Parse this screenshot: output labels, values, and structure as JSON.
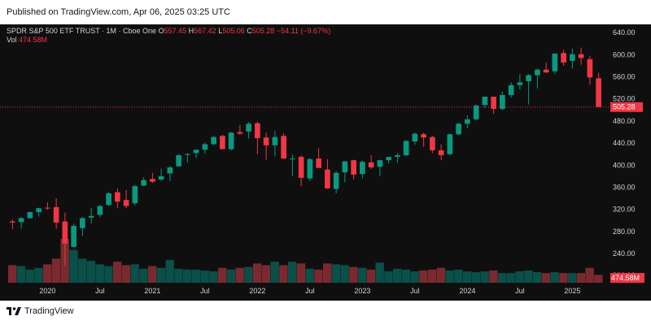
{
  "header": {
    "published": "Published on TradingView.com, Apr 06, 2025 03:25 UTC"
  },
  "legend": {
    "symbol": "SPDR S&P 500 ETF TRUST · 1M · Cboe One",
    "o_label": "O",
    "o_value": "557.45",
    "h_label": "H",
    "h_value": "567.42",
    "l_label": "L",
    "l_value": "505.06",
    "c_label": "C",
    "c_value": "505.28",
    "change": "−54.11 (−9.67%)",
    "vol_label": "Vol",
    "vol_value": "474.58M"
  },
  "footer": {
    "brand": "TradingView",
    "brand_icon": "tradingview-logo-icon"
  },
  "colors": {
    "background": "#0f0f0f",
    "up": "#089981",
    "down": "#f23645",
    "vol_up": "#0b4f49",
    "vol_down": "#7a2a2f",
    "axis_text": "#d1d4dc",
    "price_line": "#f23645"
  },
  "chart_data": {
    "type": "candlestick",
    "interval": "1M",
    "x_tick_labels": [
      "2020",
      "Jul",
      "2021",
      "Jul",
      "2022",
      "Jul",
      "2023",
      "Jul",
      "2024",
      "Jul",
      "2025"
    ],
    "y_ticks": [
      200,
      240,
      280,
      320,
      360,
      400,
      440,
      480,
      520,
      560,
      600,
      640
    ],
    "y_tick_labels": [
      "200.00",
      "240.00",
      "280.00",
      "320.00",
      "360.00",
      "400.00",
      "440.00",
      "480.00",
      "520.00",
      "560.00",
      "600.00",
      "640.00"
    ],
    "ylim": [
      190,
      655
    ],
    "last_price": 505.28,
    "last_price_label": "505.28",
    "last_volume_label": "474.58M",
    "grid": false,
    "candles": [
      {
        "date": "2019-09",
        "o": 298,
        "h": 302,
        "l": 284,
        "c": 296,
        "v": 0.4
      },
      {
        "date": "2019-10",
        "o": 297,
        "h": 306,
        "l": 285,
        "c": 304,
        "v": 0.38
      },
      {
        "date": "2019-11",
        "o": 304,
        "h": 316,
        "l": 303,
        "c": 315,
        "v": 0.3
      },
      {
        "date": "2019-12",
        "o": 315,
        "h": 323,
        "l": 307,
        "c": 322,
        "v": 0.34
      },
      {
        "date": "2020-01",
        "o": 323,
        "h": 333,
        "l": 319,
        "c": 322,
        "v": 0.42
      },
      {
        "date": "2020-02",
        "o": 324,
        "h": 340,
        "l": 285,
        "c": 296,
        "v": 0.55
      },
      {
        "date": "2020-03",
        "o": 298,
        "h": 314,
        "l": 218,
        "c": 258,
        "v": 1.0
      },
      {
        "date": "2020-04",
        "o": 252,
        "h": 294,
        "l": 250,
        "c": 290,
        "v": 0.75
      },
      {
        "date": "2020-05",
        "o": 286,
        "h": 306,
        "l": 272,
        "c": 304,
        "v": 0.55
      },
      {
        "date": "2020-06",
        "o": 305,
        "h": 323,
        "l": 294,
        "c": 308,
        "v": 0.5
      },
      {
        "date": "2020-07",
        "o": 310,
        "h": 328,
        "l": 306,
        "c": 326,
        "v": 0.42
      },
      {
        "date": "2020-08",
        "o": 328,
        "h": 351,
        "l": 326,
        "c": 349,
        "v": 0.38
      },
      {
        "date": "2020-09",
        "o": 351,
        "h": 358,
        "l": 322,
        "c": 334,
        "v": 0.48
      },
      {
        "date": "2020-10",
        "o": 337,
        "h": 355,
        "l": 322,
        "c": 326,
        "v": 0.4
      },
      {
        "date": "2020-11",
        "o": 331,
        "h": 364,
        "l": 327,
        "c": 362,
        "v": 0.42
      },
      {
        "date": "2020-12",
        "o": 363,
        "h": 378,
        "l": 362,
        "c": 373,
        "v": 0.32
      },
      {
        "date": "2021-01",
        "o": 375,
        "h": 386,
        "l": 368,
        "c": 370,
        "v": 0.38
      },
      {
        "date": "2021-02",
        "o": 374,
        "h": 394,
        "l": 372,
        "c": 380,
        "v": 0.34
      },
      {
        "date": "2021-03",
        "o": 385,
        "h": 398,
        "l": 371,
        "c": 396,
        "v": 0.52
      },
      {
        "date": "2021-04",
        "o": 398,
        "h": 420,
        "l": 397,
        "c": 418,
        "v": 0.32
      },
      {
        "date": "2021-05",
        "o": 419,
        "h": 422,
        "l": 405,
        "c": 420,
        "v": 0.3
      },
      {
        "date": "2021-06",
        "o": 422,
        "h": 428,
        "l": 413,
        "c": 428,
        "v": 0.3
      },
      {
        "date": "2021-07",
        "o": 428,
        "h": 441,
        "l": 421,
        "c": 438,
        "v": 0.28
      },
      {
        "date": "2021-08",
        "o": 438,
        "h": 453,
        "l": 436,
        "c": 451,
        "v": 0.26
      },
      {
        "date": "2021-09",
        "o": 453,
        "h": 455,
        "l": 429,
        "c": 429,
        "v": 0.34
      },
      {
        "date": "2021-10",
        "o": 429,
        "h": 460,
        "l": 427,
        "c": 459,
        "v": 0.3
      },
      {
        "date": "2021-11",
        "o": 460,
        "h": 473,
        "l": 455,
        "c": 457,
        "v": 0.34
      },
      {
        "date": "2021-12",
        "o": 461,
        "h": 478,
        "l": 448,
        "c": 475,
        "v": 0.36
      },
      {
        "date": "2022-01",
        "o": 476,
        "h": 479,
        "l": 420,
        "c": 449,
        "v": 0.44
      },
      {
        "date": "2022-02",
        "o": 450,
        "h": 459,
        "l": 410,
        "c": 436,
        "v": 0.4
      },
      {
        "date": "2022-03",
        "o": 436,
        "h": 462,
        "l": 416,
        "c": 451,
        "v": 0.48
      },
      {
        "date": "2022-04",
        "o": 453,
        "h": 458,
        "l": 412,
        "c": 412,
        "v": 0.4
      },
      {
        "date": "2022-05",
        "o": 412,
        "h": 419,
        "l": 380,
        "c": 412,
        "v": 0.48
      },
      {
        "date": "2022-06",
        "o": 415,
        "h": 418,
        "l": 362,
        "c": 377,
        "v": 0.44
      },
      {
        "date": "2022-07",
        "o": 376,
        "h": 413,
        "l": 371,
        "c": 411,
        "v": 0.32
      },
      {
        "date": "2022-08",
        "o": 412,
        "h": 431,
        "l": 395,
        "c": 395,
        "v": 0.3
      },
      {
        "date": "2022-09",
        "o": 392,
        "h": 411,
        "l": 357,
        "c": 358,
        "v": 0.44
      },
      {
        "date": "2022-10",
        "o": 357,
        "h": 389,
        "l": 349,
        "c": 386,
        "v": 0.42
      },
      {
        "date": "2022-11",
        "o": 387,
        "h": 407,
        "l": 369,
        "c": 407,
        "v": 0.4
      },
      {
        "date": "2022-12",
        "o": 409,
        "h": 410,
        "l": 374,
        "c": 383,
        "v": 0.36
      },
      {
        "date": "2023-01",
        "o": 384,
        "h": 408,
        "l": 376,
        "c": 406,
        "v": 0.34
      },
      {
        "date": "2023-02",
        "o": 405,
        "h": 418,
        "l": 393,
        "c": 396,
        "v": 0.3
      },
      {
        "date": "2023-03",
        "o": 397,
        "h": 410,
        "l": 380,
        "c": 409,
        "v": 0.46
      },
      {
        "date": "2023-04",
        "o": 409,
        "h": 415,
        "l": 403,
        "c": 415,
        "v": 0.26
      },
      {
        "date": "2023-05",
        "o": 415,
        "h": 422,
        "l": 404,
        "c": 418,
        "v": 0.32
      },
      {
        "date": "2023-06",
        "o": 418,
        "h": 445,
        "l": 416,
        "c": 444,
        "v": 0.3
      },
      {
        "date": "2023-07",
        "o": 443,
        "h": 459,
        "l": 437,
        "c": 457,
        "v": 0.26
      },
      {
        "date": "2023-08",
        "o": 456,
        "h": 459,
        "l": 433,
        "c": 450,
        "v": 0.28
      },
      {
        "date": "2023-09",
        "o": 451,
        "h": 453,
        "l": 422,
        "c": 427,
        "v": 0.3
      },
      {
        "date": "2023-10",
        "o": 427,
        "h": 438,
        "l": 409,
        "c": 418,
        "v": 0.34
      },
      {
        "date": "2023-11",
        "o": 420,
        "h": 457,
        "l": 418,
        "c": 456,
        "v": 0.28
      },
      {
        "date": "2023-12",
        "o": 456,
        "h": 477,
        "l": 454,
        "c": 475,
        "v": 0.3
      },
      {
        "date": "2024-01",
        "o": 475,
        "h": 490,
        "l": 467,
        "c": 483,
        "v": 0.26
      },
      {
        "date": "2024-02",
        "o": 483,
        "h": 510,
        "l": 481,
        "c": 508,
        "v": 0.24
      },
      {
        "date": "2024-03",
        "o": 509,
        "h": 524,
        "l": 504,
        "c": 524,
        "v": 0.26
      },
      {
        "date": "2024-04",
        "o": 524,
        "h": 524,
        "l": 493,
        "c": 502,
        "v": 0.28
      },
      {
        "date": "2024-05",
        "o": 502,
        "h": 533,
        "l": 499,
        "c": 527,
        "v": 0.22
      },
      {
        "date": "2024-06",
        "o": 527,
        "h": 550,
        "l": 522,
        "c": 545,
        "v": 0.22
      },
      {
        "date": "2024-07",
        "o": 545,
        "h": 565,
        "l": 537,
        "c": 550,
        "v": 0.26
      },
      {
        "date": "2024-08",
        "o": 552,
        "h": 565,
        "l": 510,
        "c": 563,
        "v": 0.28
      },
      {
        "date": "2024-09",
        "o": 563,
        "h": 575,
        "l": 539,
        "c": 573,
        "v": 0.24
      },
      {
        "date": "2024-10",
        "o": 573,
        "h": 586,
        "l": 567,
        "c": 568,
        "v": 0.22
      },
      {
        "date": "2024-11",
        "o": 570,
        "h": 603,
        "l": 565,
        "c": 602,
        "v": 0.24
      },
      {
        "date": "2024-12",
        "o": 603,
        "h": 609,
        "l": 580,
        "c": 586,
        "v": 0.22
      },
      {
        "date": "2025-01",
        "o": 589,
        "h": 611,
        "l": 575,
        "c": 601,
        "v": 0.22
      },
      {
        "date": "2025-02",
        "o": 601,
        "h": 613,
        "l": 582,
        "c": 594,
        "v": 0.22
      },
      {
        "date": "2025-03",
        "o": 592,
        "h": 598,
        "l": 546,
        "c": 559,
        "v": 0.34
      },
      {
        "date": "2025-04",
        "o": 557.45,
        "h": 567.42,
        "l": 505.06,
        "c": 505.28,
        "v": 0.18
      }
    ]
  }
}
